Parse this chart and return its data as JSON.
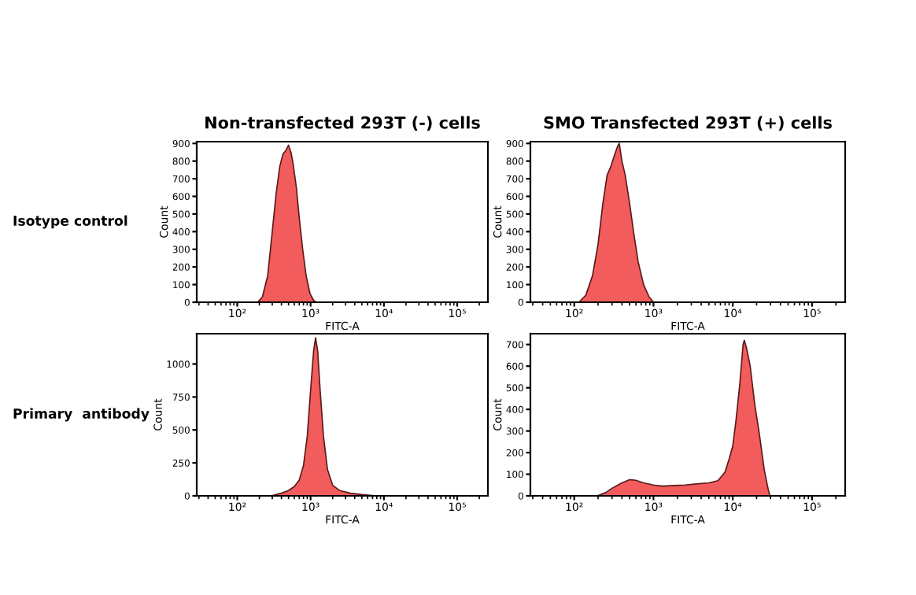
{
  "chart_data": [
    {
      "type": "area",
      "title": "Non-transfected 293T (-) cells",
      "xlabel": "FITC-A",
      "ylabel": "Count",
      "annotations": [
        "Isotype control"
      ],
      "log": "x",
      "xlim": [
        28,
        262144
      ],
      "xticks": [
        {
          "value": 100,
          "label": "10²"
        },
        {
          "value": 1000,
          "label": "10³"
        },
        {
          "value": 10000,
          "label": "10⁴"
        },
        {
          "value": 100000,
          "label": "10⁵"
        }
      ],
      "ylim": [
        0,
        910
      ],
      "yticks": [
        0,
        100,
        200,
        300,
        400,
        500,
        600,
        700,
        800,
        900
      ],
      "grid": false,
      "series": [
        {
          "color": "#f25c5c",
          "x": [
            190,
            220,
            260,
            300,
            340,
            380,
            420,
            460,
            500,
            540,
            580,
            640,
            700,
            780,
            870,
            980,
            1100,
            1200
          ],
          "values": [
            0,
            30,
            150,
            400,
            620,
            770,
            840,
            860,
            890,
            850,
            780,
            650,
            480,
            300,
            150,
            50,
            10,
            0
          ]
        }
      ]
    },
    {
      "type": "area",
      "title": "SMO Transfected 293T (+) cells",
      "xlabel": "FITC-A",
      "ylabel": "Count",
      "log": "x",
      "xlim": [
        28,
        262144
      ],
      "xticks": [
        {
          "value": 100,
          "label": "10²"
        },
        {
          "value": 1000,
          "label": "10³"
        },
        {
          "value": 10000,
          "label": "10⁴"
        },
        {
          "value": 100000,
          "label": "10⁵"
        }
      ],
      "ylim": [
        0,
        910
      ],
      "yticks": [
        0,
        100,
        200,
        300,
        400,
        500,
        600,
        700,
        800,
        900
      ],
      "grid": false,
      "series": [
        {
          "color": "#f25c5c",
          "x": [
            115,
            140,
            170,
            200,
            230,
            260,
            290,
            320,
            350,
            370,
            400,
            440,
            500,
            560,
            640,
            750,
            880,
            1000
          ],
          "values": [
            0,
            40,
            150,
            330,
            560,
            720,
            770,
            830,
            880,
            900,
            800,
            720,
            560,
            400,
            230,
            100,
            30,
            0
          ]
        }
      ]
    },
    {
      "type": "area",
      "xlabel": "FITC-A",
      "ylabel": "Count",
      "annotations": [
        "Primary  antibody"
      ],
      "log": "x",
      "xlim": [
        28,
        262144
      ],
      "xticks": [
        {
          "value": 100,
          "label": "10²"
        },
        {
          "value": 1000,
          "label": "10³"
        },
        {
          "value": 10000,
          "label": "10⁴"
        },
        {
          "value": 100000,
          "label": "10⁵"
        }
      ],
      "ylim": [
        0,
        1230
      ],
      "yticks": [
        0,
        250,
        500,
        750,
        1000
      ],
      "grid": false,
      "series": [
        {
          "color": "#f25c5c",
          "x": [
            290,
            400,
            500,
            600,
            700,
            800,
            900,
            1000,
            1100,
            1170,
            1250,
            1350,
            1500,
            1700,
            2000,
            2500,
            3500,
            5000,
            8000
          ],
          "values": [
            0,
            20,
            40,
            70,
            120,
            230,
            450,
            800,
            1100,
            1200,
            1100,
            800,
            450,
            200,
            80,
            40,
            20,
            10,
            0
          ]
        }
      ]
    },
    {
      "type": "area",
      "xlabel": "FITC-A",
      "ylabel": "Count",
      "log": "x",
      "xlim": [
        28,
        262144
      ],
      "xticks": [
        {
          "value": 100,
          "label": "10²"
        },
        {
          "value": 1000,
          "label": "10³"
        },
        {
          "value": 10000,
          "label": "10⁴"
        },
        {
          "value": 100000,
          "label": "10⁵"
        }
      ],
      "ylim": [
        0,
        750
      ],
      "yticks": [
        0,
        100,
        200,
        300,
        400,
        500,
        600,
        700
      ],
      "grid": false,
      "series": [
        {
          "color": "#f25c5c",
          "x": [
            195,
            250,
            300,
            400,
            500,
            600,
            750,
            1000,
            1300,
            1800,
            2500,
            3500,
            5000,
            6500,
            8000,
            9000,
            10000,
            11000,
            12300,
            13500,
            14000,
            15000,
            16600,
            19000,
            21400,
            25000,
            28000,
            29500
          ],
          "values": [
            0,
            15,
            35,
            60,
            75,
            72,
            60,
            50,
            45,
            48,
            50,
            55,
            60,
            70,
            110,
            170,
            230,
            350,
            520,
            700,
            720,
            680,
            600,
            420,
            300,
            120,
            30,
            0
          ]
        }
      ]
    }
  ]
}
